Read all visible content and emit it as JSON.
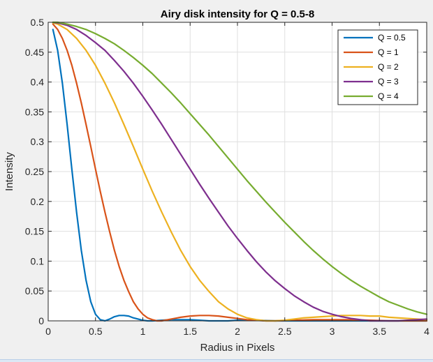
{
  "chart_data": {
    "type": "line",
    "title": "Airy disk intensity for Q = 0.5-8",
    "xlabel": "Radius in Pixels",
    "ylabel": "Intensity",
    "xlim": [
      0,
      4
    ],
    "ylim": [
      0,
      0.5
    ],
    "xticks": [
      "0",
      "0.5",
      "1",
      "1.5",
      "2",
      "2.5",
      "3",
      "3.5",
      "4"
    ],
    "yticks": [
      "0",
      "0.05",
      "0.1",
      "0.15",
      "0.2",
      "0.25",
      "0.3",
      "0.35",
      "0.4",
      "0.45",
      "0.5"
    ],
    "grid": true,
    "legend_position": "top-right",
    "series": [
      {
        "name": "Q = 0.5",
        "color": "#0072bd",
        "x": [
          0.05,
          0.1,
          0.15,
          0.2,
          0.25,
          0.3,
          0.35,
          0.4,
          0.45,
          0.5,
          0.55,
          0.6,
          0.65,
          0.7,
          0.75,
          0.8,
          0.85,
          0.9,
          0.95,
          1.0,
          1.05,
          1.1,
          1.2,
          1.3,
          1.4,
          1.5,
          1.6,
          1.7,
          1.8,
          1.9,
          2.0,
          2.2,
          2.4,
          2.6,
          2.8,
          3.0,
          3.2,
          3.4,
          3.6,
          3.8,
          4.0
        ],
        "y": [
          0.488,
          0.453,
          0.398,
          0.329,
          0.254,
          0.182,
          0.118,
          0.068,
          0.032,
          0.011,
          0.002,
          0.0,
          0.003,
          0.007,
          0.009,
          0.009,
          0.008,
          0.005,
          0.003,
          0.001,
          0.0,
          0.0,
          0.001,
          0.002,
          0.002,
          0.002,
          0.001,
          0.0,
          0.0,
          0.0,
          0.001,
          0.001,
          0.0,
          0.0,
          0.0,
          0.0,
          0.0,
          0.0,
          0.0,
          0.0,
          0.0
        ]
      },
      {
        "name": "Q = 1",
        "color": "#d95319",
        "x": [
          0.05,
          0.1,
          0.15,
          0.2,
          0.25,
          0.3,
          0.35,
          0.4,
          0.45,
          0.5,
          0.55,
          0.6,
          0.65,
          0.7,
          0.75,
          0.8,
          0.85,
          0.9,
          0.95,
          1.0,
          1.05,
          1.1,
          1.15,
          1.2,
          1.3,
          1.4,
          1.5,
          1.6,
          1.7,
          1.8,
          1.9,
          2.0,
          2.1,
          2.2,
          2.3,
          2.4,
          2.6,
          2.8,
          3.0,
          3.2,
          3.4,
          3.6,
          3.8,
          4.0
        ],
        "y": [
          0.497,
          0.488,
          0.473,
          0.453,
          0.428,
          0.398,
          0.365,
          0.329,
          0.292,
          0.254,
          0.217,
          0.182,
          0.149,
          0.118,
          0.091,
          0.068,
          0.049,
          0.032,
          0.02,
          0.011,
          0.005,
          0.002,
          0.0,
          0.0,
          0.003,
          0.006,
          0.008,
          0.009,
          0.009,
          0.008,
          0.006,
          0.004,
          0.002,
          0.001,
          0.0,
          0.0,
          0.001,
          0.002,
          0.002,
          0.002,
          0.001,
          0.0,
          0.0,
          0.0
        ]
      },
      {
        "name": "Q = 2",
        "color": "#edb120",
        "x": [
          0.05,
          0.1,
          0.2,
          0.3,
          0.4,
          0.5,
          0.6,
          0.7,
          0.8,
          0.9,
          1.0,
          1.1,
          1.2,
          1.3,
          1.4,
          1.5,
          1.6,
          1.7,
          1.8,
          1.9,
          2.0,
          2.1,
          2.2,
          2.3,
          2.4,
          2.5,
          2.6,
          2.7,
          2.8,
          2.9,
          3.0,
          3.1,
          3.2,
          3.3,
          3.4,
          3.5,
          3.6,
          3.7,
          3.8,
          3.9,
          4.0
        ],
        "y": [
          0.499,
          0.497,
          0.488,
          0.473,
          0.453,
          0.428,
          0.398,
          0.365,
          0.329,
          0.292,
          0.254,
          0.217,
          0.182,
          0.149,
          0.118,
          0.091,
          0.068,
          0.049,
          0.032,
          0.02,
          0.011,
          0.005,
          0.002,
          0.0,
          0.0,
          0.001,
          0.003,
          0.005,
          0.006,
          0.007,
          0.008,
          0.009,
          0.009,
          0.009,
          0.008,
          0.008,
          0.006,
          0.005,
          0.004,
          0.003,
          0.002
        ]
      },
      {
        "name": "Q = 3",
        "color": "#7e2f8e",
        "x": [
          0.05,
          0.1,
          0.2,
          0.3,
          0.4,
          0.5,
          0.6,
          0.7,
          0.8,
          0.9,
          1.0,
          1.1,
          1.2,
          1.3,
          1.4,
          1.5,
          1.6,
          1.7,
          1.8,
          1.9,
          2.0,
          2.1,
          2.2,
          2.3,
          2.4,
          2.5,
          2.6,
          2.7,
          2.8,
          2.9,
          3.0,
          3.1,
          3.2,
          3.3,
          3.4,
          3.5,
          3.6,
          3.7,
          3.8,
          3.9,
          4.0
        ],
        "y": [
          0.5,
          0.499,
          0.495,
          0.488,
          0.478,
          0.466,
          0.453,
          0.436,
          0.418,
          0.398,
          0.376,
          0.353,
          0.329,
          0.304,
          0.279,
          0.254,
          0.229,
          0.205,
          0.182,
          0.159,
          0.138,
          0.118,
          0.099,
          0.082,
          0.067,
          0.054,
          0.042,
          0.032,
          0.023,
          0.016,
          0.011,
          0.007,
          0.004,
          0.002,
          0.0,
          0.0,
          0.0,
          0.0,
          0.001,
          0.002,
          0.003
        ]
      },
      {
        "name": "Q = 4",
        "color": "#77ac30",
        "x": [
          0.05,
          0.1,
          0.2,
          0.3,
          0.4,
          0.5,
          0.6,
          0.7,
          0.8,
          0.9,
          1.0,
          1.1,
          1.2,
          1.3,
          1.4,
          1.5,
          1.6,
          1.7,
          1.8,
          1.9,
          2.0,
          2.1,
          2.2,
          2.3,
          2.4,
          2.5,
          2.6,
          2.7,
          2.8,
          2.9,
          3.0,
          3.1,
          3.2,
          3.3,
          3.4,
          3.5,
          3.6,
          3.7,
          3.8,
          3.9,
          4.0
        ],
        "y": [
          0.5,
          0.5,
          0.497,
          0.493,
          0.488,
          0.481,
          0.473,
          0.464,
          0.453,
          0.441,
          0.428,
          0.414,
          0.398,
          0.382,
          0.365,
          0.347,
          0.329,
          0.311,
          0.292,
          0.273,
          0.254,
          0.235,
          0.217,
          0.199,
          0.182,
          0.165,
          0.149,
          0.133,
          0.118,
          0.104,
          0.091,
          0.079,
          0.068,
          0.058,
          0.049,
          0.04,
          0.032,
          0.026,
          0.02,
          0.015,
          0.011
        ]
      }
    ]
  }
}
